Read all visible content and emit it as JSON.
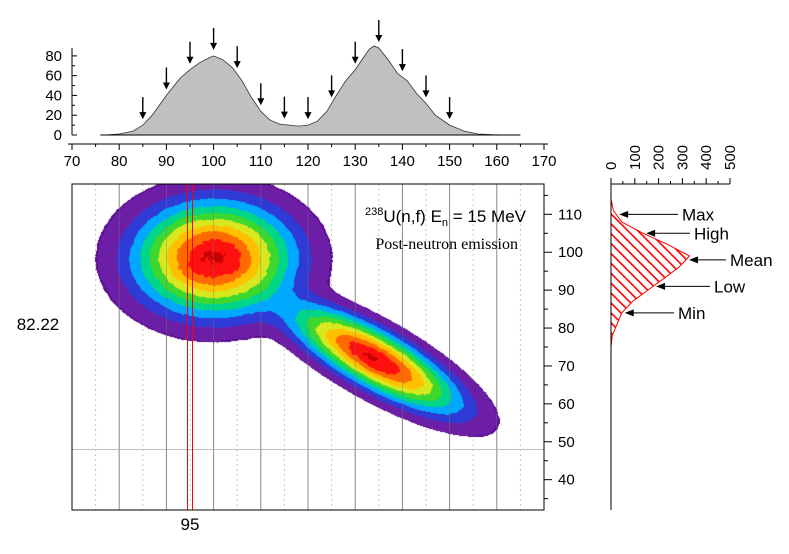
{
  "chart_data": [
    {
      "type": "area",
      "id": "top-histogram",
      "xlim": [
        70,
        170
      ],
      "ylim": [
        0,
        90
      ],
      "xticks": [
        70,
        80,
        90,
        100,
        110,
        120,
        130,
        140,
        150,
        160,
        170
      ],
      "yticks": [
        0,
        20,
        40,
        60,
        80
      ],
      "x": [
        77,
        80,
        83,
        85,
        87,
        90,
        93,
        95,
        97,
        99,
        100,
        102,
        104,
        106,
        108,
        110,
        112,
        114,
        116,
        118,
        120,
        122,
        124,
        126,
        128,
        130,
        132,
        133,
        134,
        135,
        137,
        139,
        141,
        143,
        145,
        147,
        150,
        153,
        156,
        159,
        162
      ],
      "y": [
        0,
        1,
        4,
        10,
        20,
        40,
        58,
        66,
        73,
        78,
        80,
        76,
        68,
        55,
        38,
        24,
        15,
        11,
        10,
        9,
        10,
        14,
        24,
        40,
        55,
        66,
        80,
        87,
        90,
        88,
        76,
        62,
        55,
        42,
        32,
        20,
        10,
        4,
        1,
        0.3,
        0
      ],
      "fill": "#c0c0c0",
      "arrows_at_x": [
        85,
        90,
        95,
        100,
        105,
        110,
        115,
        120,
        125,
        130,
        135,
        140,
        145,
        150
      ]
    },
    {
      "type": "heatmap",
      "id": "main-contour",
      "title": "238U(n,f) En = 15 MeV",
      "title_parts": {
        "sup": "238",
        "nucleus": "U(n,f) E",
        "sub": "n",
        "tail": " = 15 MeV"
      },
      "subtitle": "Post-neutron emission",
      "xlim": [
        70,
        170
      ],
      "ylim": [
        32,
        118
      ],
      "yticks": [
        40,
        50,
        60,
        70,
        80,
        90,
        100,
        110
      ],
      "peaks": [
        {
          "x": 100,
          "y": 98.5,
          "sx": 8.5,
          "sy": 7.5,
          "amp": 1.0
        },
        {
          "x": 134,
          "y": 72,
          "sx": 9,
          "sy": 7,
          "amp": 0.97,
          "corr": -0.8
        }
      ],
      "colorscale": [
        "#ffffff",
        "#5a0a8c",
        "#6c1fa6",
        "#2e3bd6",
        "#00a8ff",
        "#00d68a",
        "#3cd82e",
        "#d8e81e",
        "#ffc000",
        "#ff6a00",
        "#ff1010",
        "#c80000"
      ],
      "cursor_x": 95,
      "cursor_x_label": "95",
      "cursor_y": 48,
      "cursor_y_label": "82.22",
      "cursor_color": "#ff0000"
    },
    {
      "type": "bar",
      "id": "right-projection",
      "orientation": "horizontal",
      "xlim": [
        0,
        500
      ],
      "xticks": [
        0,
        100,
        200,
        300,
        400,
        500
      ],
      "ylim": [
        32,
        118
      ],
      "y": [
        75,
        78,
        81,
        84,
        87,
        90,
        93,
        96,
        99,
        102,
        105,
        108,
        111,
        114
      ],
      "values": [
        0,
        5,
        25,
        45,
        90,
        155,
        220,
        285,
        330,
        240,
        135,
        45,
        10,
        0
      ],
      "fill_pattern": "red-hatch",
      "annotations": [
        {
          "label": "Max",
          "at_y": 110
        },
        {
          "label": "High",
          "at_y": 105
        },
        {
          "label": "Mean",
          "at_y": 98
        },
        {
          "label": "Low",
          "at_y": 91
        },
        {
          "label": "Min",
          "at_y": 84
        }
      ]
    }
  ]
}
